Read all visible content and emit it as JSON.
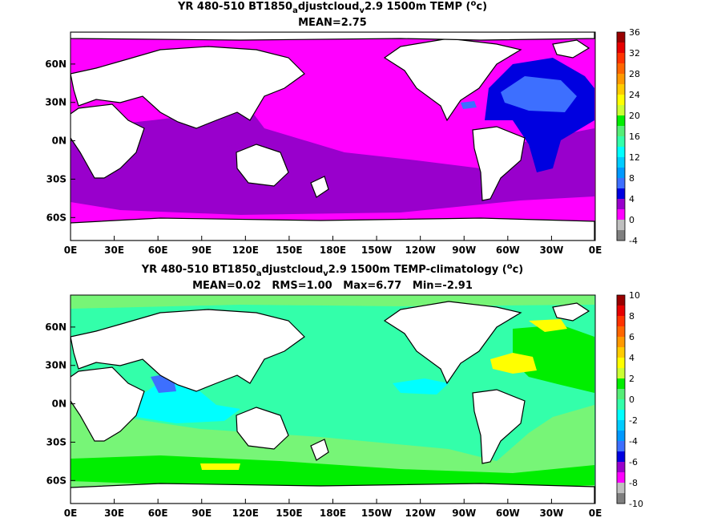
{
  "chart_data": [
    {
      "type": "heatmap",
      "title": "YR 480-510 BT1850adjustcloudv2.9 1500m TEMP (oc)",
      "title_parts": {
        "pre": "YR 480-510 BT1850",
        "sub1": "a",
        "mid": "djustcloud",
        "sub2": "v",
        "post": "2.9 1500m TEMP (",
        "sup": "o",
        "end": "c)"
      },
      "subtitle": "MEAN=2.75",
      "x_ticks": [
        "0E",
        "30E",
        "60E",
        "90E",
        "120E",
        "150E",
        "180E",
        "150W",
        "120W",
        "90W",
        "60W",
        "30W",
        "0E"
      ],
      "y_ticks": [
        "60N",
        "30N",
        "0N",
        "30S",
        "60S"
      ],
      "ylim": [
        -78,
        85
      ],
      "xlim": [
        0,
        360
      ],
      "colorbar": {
        "ticks": [
          "36",
          "32",
          "28",
          "24",
          "20",
          "16",
          "12",
          "8",
          "4",
          "0",
          "-4"
        ],
        "range": [
          -4,
          36
        ],
        "colors": [
          "#7f7f7f",
          "#bfbfbf",
          "#ff00ff",
          "#9900cc",
          "#0000e0",
          "#3d6fff",
          "#0099ff",
          "#00ccff",
          "#00ffff",
          "#33ffaa",
          "#55ee77",
          "#00ee00",
          "#ccff33",
          "#ffff00",
          "#ffcc00",
          "#ff9900",
          "#ff6600",
          "#ff3300",
          "#e60000",
          "#990000"
        ]
      },
      "regions": [
        {
          "name": "polar-magenta",
          "value": -1.5,
          "color": "#ff00ff"
        },
        {
          "name": "deep-purple",
          "value": 1.5,
          "color": "#9900cc"
        },
        {
          "name": "north-atlantic-blue",
          "value": 3.5,
          "color": "#0000e0"
        },
        {
          "name": "north-atlantic-light-blue",
          "value": 5.5,
          "color": "#3d6fff"
        }
      ]
    },
    {
      "type": "heatmap",
      "title": "YR 480-510 BT1850adjustcloudv2.9 1500m TEMP-climatology (oc)",
      "title_parts": {
        "pre": "YR 480-510 BT1850",
        "sub1": "a",
        "mid": "djustcloud",
        "sub2": "v",
        "post": "2.9 1500m TEMP-climatology (",
        "sup": "o",
        "end": "c)"
      },
      "subtitle": "MEAN=0.02   RMS=1.00   Max=6.77   Min=-2.91",
      "stats": {
        "mean": 0.02,
        "rms": 1.0,
        "max": 6.77,
        "min": -2.91
      },
      "x_ticks": [
        "0E",
        "30E",
        "60E",
        "90E",
        "120E",
        "150E",
        "180E",
        "150W",
        "120W",
        "90W",
        "60W",
        "30W",
        "0E"
      ],
      "y_ticks": [
        "60N",
        "30N",
        "0N",
        "30S",
        "60S"
      ],
      "ylim": [
        -78,
        85
      ],
      "xlim": [
        0,
        360
      ],
      "colorbar": {
        "ticks": [
          "10",
          "8",
          "6",
          "4",
          "2",
          "0",
          "-2",
          "-4",
          "-6",
          "-8",
          "-10"
        ],
        "range": [
          -10,
          10
        ],
        "colors": [
          "#7f7f7f",
          "#bfbfbf",
          "#ff00ff",
          "#9900cc",
          "#0000e0",
          "#3d6fff",
          "#0099ff",
          "#00ccff",
          "#00ffff",
          "#33ffaa",
          "#55ee77",
          "#00ee00",
          "#ccff33",
          "#ffff00",
          "#ffcc00",
          "#ff9900",
          "#ff6600",
          "#ff3300",
          "#e60000",
          "#990000"
        ]
      },
      "regions": [
        {
          "name": "global-teal",
          "value": 0.5,
          "color": "#33ffaa"
        },
        {
          "name": "southern-light-green",
          "value": 1.5,
          "color": "#77f577"
        },
        {
          "name": "southern-green",
          "value": 2.5,
          "color": "#00ee00"
        },
        {
          "name": "indian-cyan",
          "value": -0.5,
          "color": "#00ffff"
        },
        {
          "name": "atlantic-yellow",
          "value": 4.5,
          "color": "#ffff00"
        }
      ]
    }
  ]
}
